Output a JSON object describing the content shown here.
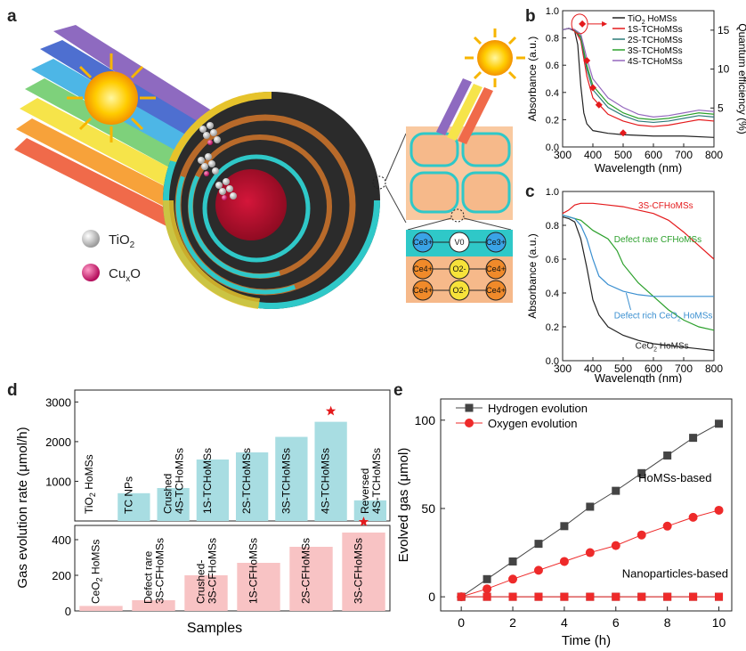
{
  "panels": {
    "a": {
      "label": "a",
      "legend": [
        {
          "name_main": "TiO",
          "name_sub": "2",
          "color": "#cccccc"
        },
        {
          "name_main": "Cu",
          "name_sub": "x",
          "name_tail": "O",
          "color": "#d6166f"
        }
      ],
      "lattice_top": [
        "Ce3+",
        "V0",
        "Ce3+"
      ],
      "lattice_mid": [
        "Ce4+",
        "O2-",
        "Ce4+"
      ],
      "lattice_bot": [
        "Ce4+",
        "O2-",
        "Ce4+"
      ]
    },
    "b": {
      "label": "b"
    },
    "c": {
      "label": "c"
    },
    "d": {
      "label": "d"
    },
    "e": {
      "label": "e"
    }
  },
  "chart_data": [
    {
      "id": "b",
      "type": "line",
      "xlabel": "Wavelength (nm)",
      "ylabel": "Absorbance (a.u.)",
      "y2label": "Quantum efficiency (%)",
      "xlim": [
        300,
        800
      ],
      "ylim": [
        0,
        1
      ],
      "y2lim": [
        0,
        17.5
      ],
      "xticks": [
        300,
        400,
        500,
        600,
        700,
        800
      ],
      "yticks": [
        0.0,
        0.2,
        0.4,
        0.6,
        0.8,
        1.0
      ],
      "y2ticks": [
        5,
        10,
        15
      ],
      "legend_position": "top-right",
      "series": [
        {
          "name": "TiO2 HoMSs",
          "name_main": "TiO",
          "name_sub": "2",
          "name_tail": " HoMSs",
          "color": "#222222",
          "x": [
            300,
            320,
            340,
            350,
            360,
            370,
            380,
            400,
            450,
            500,
            600,
            700,
            800
          ],
          "y": [
            0.86,
            0.87,
            0.85,
            0.75,
            0.45,
            0.25,
            0.17,
            0.12,
            0.1,
            0.09,
            0.08,
            0.08,
            0.07
          ]
        },
        {
          "name": "1S-TCHoMSs",
          "name_main": "1S-TCHoMSs",
          "color": "#e41a1c",
          "x": [
            300,
            320,
            340,
            360,
            380,
            400,
            450,
            500,
            550,
            600,
            650,
            700,
            750,
            800
          ],
          "y": [
            0.86,
            0.87,
            0.86,
            0.78,
            0.52,
            0.36,
            0.24,
            0.19,
            0.16,
            0.15,
            0.16,
            0.18,
            0.2,
            0.19
          ]
        },
        {
          "name": "2S-TCHoMSs",
          "name_main": "2S-TCHoMSs",
          "color": "#2a7a78",
          "x": [
            300,
            320,
            340,
            360,
            380,
            400,
            450,
            500,
            550,
            600,
            650,
            700,
            750,
            800
          ],
          "y": [
            0.86,
            0.87,
            0.86,
            0.8,
            0.57,
            0.42,
            0.29,
            0.23,
            0.19,
            0.18,
            0.19,
            0.21,
            0.23,
            0.22
          ]
        },
        {
          "name": "3S-TCHoMSs",
          "name_main": "3S-TCHoMSs",
          "color": "#2ca02c",
          "x": [
            300,
            320,
            340,
            360,
            380,
            400,
            450,
            500,
            550,
            600,
            650,
            700,
            750,
            800
          ],
          "y": [
            0.86,
            0.87,
            0.86,
            0.81,
            0.6,
            0.45,
            0.32,
            0.25,
            0.21,
            0.2,
            0.21,
            0.23,
            0.25,
            0.24
          ]
        },
        {
          "name": "4S-TCHoMSs",
          "name_main": "4S-TCHoMSs",
          "color": "#9467bd",
          "x": [
            300,
            320,
            340,
            360,
            380,
            400,
            450,
            500,
            550,
            600,
            650,
            700,
            750,
            800
          ],
          "y": [
            0.86,
            0.87,
            0.86,
            0.83,
            0.65,
            0.5,
            0.36,
            0.29,
            0.24,
            0.22,
            0.23,
            0.25,
            0.27,
            0.26
          ]
        }
      ],
      "qe_points": {
        "x": [
          365,
          380,
          400,
          420,
          500
        ],
        "y": [
          15.8,
          11.1,
          7.6,
          5.4,
          1.8
        ],
        "color": "#e41a1c"
      }
    },
    {
      "id": "c",
      "type": "line",
      "xlabel": "Wavelength (nm)",
      "ylabel": "Absorbance (a.u.)",
      "xlim": [
        300,
        800
      ],
      "ylim": [
        0,
        1
      ],
      "xticks": [
        300,
        400,
        500,
        600,
        700,
        800
      ],
      "yticks": [
        0.0,
        0.2,
        0.4,
        0.6,
        0.8,
        1.0
      ],
      "series": [
        {
          "name": "3S-CFHoMSs",
          "label_main": "3S-CFHoMSs",
          "color": "#e41a1c",
          "x": [
            300,
            320,
            340,
            360,
            380,
            400,
            450,
            500,
            550,
            600,
            650,
            700,
            750,
            800
          ],
          "y": [
            0.87,
            0.89,
            0.92,
            0.93,
            0.93,
            0.93,
            0.92,
            0.91,
            0.89,
            0.87,
            0.83,
            0.76,
            0.68,
            0.6
          ]
        },
        {
          "name": "Defect rare CFHoMSs",
          "label_main": "Defect rare CFHoMSs",
          "color": "#2ca02c",
          "x": [
            300,
            320,
            340,
            360,
            380,
            400,
            450,
            480,
            500,
            550,
            600,
            650,
            700,
            750,
            800
          ],
          "y": [
            0.86,
            0.85,
            0.84,
            0.83,
            0.8,
            0.77,
            0.72,
            0.65,
            0.57,
            0.46,
            0.38,
            0.3,
            0.24,
            0.2,
            0.18
          ]
        },
        {
          "name": "Defect rich CeO2 HoMSs",
          "label_main": "Defect rich CeO",
          "label_sub": "2",
          "label_tail": " HoMSs",
          "color": "#3a8fd0",
          "x": [
            300,
            320,
            340,
            360,
            380,
            400,
            420,
            450,
            500,
            550,
            600,
            650,
            700,
            750,
            800
          ],
          "y": [
            0.86,
            0.85,
            0.84,
            0.8,
            0.72,
            0.6,
            0.5,
            0.45,
            0.41,
            0.39,
            0.38,
            0.38,
            0.38,
            0.38,
            0.38
          ]
        },
        {
          "name": "CeO2 HoMSs",
          "label_main": "CeO",
          "label_sub": "2",
          "label_tail": " HoMSs",
          "color": "#222222",
          "x": [
            300,
            320,
            340,
            360,
            380,
            400,
            420,
            450,
            500,
            550,
            600,
            650,
            700,
            750,
            800
          ],
          "y": [
            0.85,
            0.84,
            0.82,
            0.72,
            0.55,
            0.36,
            0.27,
            0.2,
            0.15,
            0.12,
            0.1,
            0.09,
            0.08,
            0.07,
            0.06
          ]
        }
      ]
    },
    {
      "id": "d",
      "type": "bar",
      "ylabel": "Gas evolution rate (μmol/h)",
      "xlabel": "Samples",
      "top": {
        "ylim": [
          0,
          3300
        ],
        "yticks": [
          1000,
          2000,
          3000
        ],
        "color": "#a8dde2",
        "bars": [
          {
            "label": "TiO2 HoMSs",
            "l1": "TiO",
            "l1sub": "2",
            "l1tail": " HoMSs",
            "value": 0
          },
          {
            "label": "TC NPs",
            "l1": "TC NPs",
            "value": 700
          },
          {
            "label": "Crushed 4S-TCHoMSs",
            "l1": "Crushed",
            "l2": "4S-TCHoMSs",
            "value": 830
          },
          {
            "label": "1S-TCHoMSs",
            "l1": "1S-TCHoMSs",
            "value": 1550
          },
          {
            "label": "2S-TCHoMSs",
            "l1": "2S-TCHoMSs",
            "value": 1730
          },
          {
            "label": "3S-TCHoMSs",
            "l1": "3S-TCHoMSs",
            "value": 2120
          },
          {
            "label": "4S-TCHoMSs",
            "l1": "4S-TCHoMSs",
            "value": 2500,
            "star": true
          },
          {
            "label": "Reversed 4S-TCHoMSs",
            "l1": "Reversed",
            "l2": "4S-TCHoMSs",
            "value": 520
          }
        ]
      },
      "bottom": {
        "ylim": [
          0,
          480
        ],
        "yticks": [
          0,
          200,
          400
        ],
        "color": "#f8c3c4",
        "bars": [
          {
            "label": "CeO2 HoMSs",
            "l1": "CeO",
            "l1sub": "2",
            "l1tail": " HoMSs",
            "value": 28
          },
          {
            "label": "Defect rare 3S-CFHoMSs",
            "l1": "Defect rare",
            "l2": "3S-CFHoMSs",
            "value": 60
          },
          {
            "label": "Crushed-3S-CFHoMSs",
            "l1": "Crushed-",
            "l2": "3S-CFHoMSs",
            "value": 200
          },
          {
            "label": "1S-CFHoMSs",
            "l1": "1S-CFHoMSs",
            "value": 270
          },
          {
            "label": "2S-CFHoMSs",
            "l1": "2S-CFHoMSs",
            "value": 360
          },
          {
            "label": "3S-CFHoMSs",
            "l1": "3S-CFHoMSs",
            "value": 440,
            "star": true
          }
        ]
      }
    },
    {
      "id": "e",
      "type": "line",
      "xlabel": "Time (h)",
      "ylabel": "Evolved gas (μmol)",
      "xlim": [
        -0.8,
        10.5
      ],
      "ylim": [
        -8,
        112
      ],
      "xticks": [
        0,
        2,
        4,
        6,
        8,
        10
      ],
      "yticks": [
        0,
        50,
        100
      ],
      "legend_position": "top-left",
      "annotations": [
        "HoMSs-based",
        "Nanoparticles-based"
      ],
      "series": [
        {
          "name": "Hydrogen evolution",
          "marker": "square",
          "color": "#444444",
          "x": [
            0,
            1,
            2,
            3,
            4,
            5,
            6,
            7,
            8,
            9,
            10
          ],
          "y": [
            0,
            10,
            20,
            30,
            40,
            51,
            60,
            70,
            80,
            90,
            98
          ]
        },
        {
          "name": "Oxygen evolution",
          "marker": "circle",
          "color": "#ee2a2a",
          "x": [
            0,
            1,
            2,
            3,
            4,
            5,
            6,
            7,
            8,
            9,
            10
          ],
          "y": [
            0,
            4.5,
            10,
            15,
            20,
            25,
            29,
            35,
            40,
            45,
            49
          ]
        },
        {
          "name": "Hydrogen evolution (Nanoparticles-based)",
          "marker": "square",
          "color": "#444444",
          "x": [
            0,
            1,
            2,
            3,
            4,
            5,
            6,
            7,
            8,
            9,
            10
          ],
          "y": [
            0,
            0,
            0,
            0,
            0,
            0,
            0,
            0,
            0,
            0,
            0
          ]
        },
        {
          "name": "Oxygen evolution (Nanoparticles-based)",
          "marker": "square",
          "color": "#ee2a2a",
          "x": [
            0,
            1,
            2,
            3,
            4,
            5,
            6,
            7,
            8,
            9,
            10
          ],
          "y": [
            0,
            0,
            0,
            0,
            0,
            0,
            0,
            0,
            0,
            0,
            0
          ]
        }
      ]
    }
  ]
}
